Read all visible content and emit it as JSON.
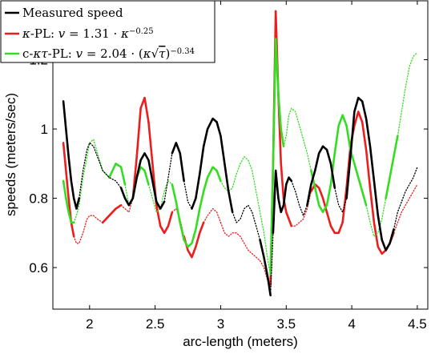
{
  "chart_data": {
    "type": "line",
    "xlabel": "arc-length (meters)",
    "ylabel": "speeds (meters/sec)",
    "xlim": [
      1.72,
      4.58
    ],
    "ylim": [
      0.48,
      1.37
    ],
    "xticks": [
      2,
      2.5,
      3,
      3.5,
      4,
      4.5
    ],
    "xtick_labels": [
      "2",
      "2.5",
      "3",
      "3.5",
      "4",
      "4.5"
    ],
    "yticks": [
      0.6,
      0.8,
      1.0,
      1.2
    ],
    "ytick_labels": [
      "0.6",
      "0.8",
      "1",
      "1.2"
    ],
    "grid": false,
    "legend_position": "top-left",
    "legend": [
      "Measured speed",
      "κ-PL: v = 1.31 · κ^(−0.25)",
      "c-κτ-PL: v = 2.04 · (κ√τ)^(−0.34)"
    ],
    "series": [
      {
        "name": "Measured speed",
        "color": "#000000",
        "x": [
          1.8,
          1.82,
          1.84,
          1.86,
          1.88,
          1.9,
          1.92,
          1.95,
          1.98,
          2.0,
          2.03,
          2.06,
          2.1,
          2.15,
          2.2,
          2.24,
          2.27,
          2.3,
          2.33,
          2.36,
          2.39,
          2.42,
          2.45,
          2.48,
          2.51,
          2.54,
          2.57,
          2.6,
          2.63,
          2.66,
          2.69,
          2.72,
          2.75,
          2.78,
          2.81,
          2.84,
          2.87,
          2.9,
          2.94,
          2.97,
          3.0,
          3.03,
          3.06,
          3.09,
          3.12,
          3.15,
          3.18,
          3.21,
          3.24,
          3.27,
          3.3,
          3.33,
          3.36,
          3.38,
          3.4,
          3.42,
          3.44,
          3.46,
          3.48,
          3.5,
          3.52,
          3.54,
          3.57,
          3.6,
          3.63,
          3.66,
          3.69,
          3.72,
          3.75,
          3.78,
          3.81,
          3.84,
          3.87,
          3.9,
          3.93,
          3.96,
          3.99,
          4.02,
          4.05,
          4.08,
          4.11,
          4.14,
          4.17,
          4.2,
          4.23,
          4.26,
          4.29,
          4.32,
          4.35,
          4.38,
          4.41,
          4.44,
          4.47,
          4.5
        ],
        "y": [
          1.08,
          1.0,
          0.92,
          0.85,
          0.8,
          0.77,
          0.8,
          0.88,
          0.94,
          0.96,
          0.95,
          0.92,
          0.88,
          0.86,
          0.85,
          0.83,
          0.8,
          0.78,
          0.8,
          0.86,
          0.91,
          0.93,
          0.91,
          0.85,
          0.79,
          0.77,
          0.79,
          0.86,
          0.93,
          0.96,
          0.93,
          0.85,
          0.79,
          0.77,
          0.8,
          0.87,
          0.95,
          1.0,
          1.03,
          1.02,
          0.98,
          0.9,
          0.82,
          0.76,
          0.73,
          0.74,
          0.77,
          0.78,
          0.76,
          0.72,
          0.68,
          0.63,
          0.57,
          0.52,
          0.7,
          0.88,
          0.8,
          0.76,
          0.78,
          0.84,
          0.86,
          0.85,
          0.82,
          0.78,
          0.75,
          0.78,
          0.84,
          0.88,
          0.93,
          0.95,
          0.94,
          0.9,
          0.83,
          0.78,
          0.76,
          0.8,
          0.92,
          1.05,
          1.09,
          1.08,
          1.03,
          0.95,
          0.85,
          0.75,
          0.68,
          0.65,
          0.67,
          0.71,
          0.76,
          0.79,
          0.82,
          0.84,
          0.86,
          0.89
        ],
        "segments": [
          {
            "from": 0,
            "to": 6,
            "style": "solid"
          },
          {
            "from": 6,
            "to": 15,
            "style": "dotted"
          },
          {
            "from": 15,
            "to": 26,
            "style": "solid"
          },
          {
            "from": 26,
            "to": 28,
            "style": "dotted"
          },
          {
            "from": 28,
            "to": 31,
            "style": "solid"
          },
          {
            "from": 31,
            "to": 33,
            "style": "dotted"
          },
          {
            "from": 33,
            "to": 39,
            "style": "solid"
          },
          {
            "from": 39,
            "to": 43,
            "style": "solid"
          },
          {
            "from": 43,
            "to": 44,
            "style": "dotted"
          },
          {
            "from": 44,
            "to": 50,
            "style": "dotted"
          },
          {
            "from": 50,
            "to": 53,
            "style": "solid"
          },
          {
            "from": 53,
            "to": 54,
            "style": "dotted"
          },
          {
            "from": 54,
            "to": 61,
            "style": "solid"
          },
          {
            "from": 61,
            "to": 65,
            "style": "dotted"
          },
          {
            "from": 65,
            "to": 72,
            "style": "solid"
          },
          {
            "from": 72,
            "to": 75,
            "style": "dotted"
          },
          {
            "from": 75,
            "to": 83,
            "style": "solid"
          },
          {
            "from": 83,
            "to": 87,
            "style": "solid"
          },
          {
            "from": 87,
            "to": 93,
            "style": "dotted"
          }
        ]
      },
      {
        "name": "κ-PL: v = 1.31 · κ^(−0.25)",
        "color": "#ee1c1c",
        "x": [
          1.8,
          1.82,
          1.84,
          1.86,
          1.88,
          1.9,
          1.92,
          1.95,
          1.98,
          2.0,
          2.03,
          2.06,
          2.1,
          2.15,
          2.2,
          2.24,
          2.27,
          2.3,
          2.33,
          2.36,
          2.39,
          2.42,
          2.45,
          2.48,
          2.51,
          2.54,
          2.57,
          2.6,
          2.63,
          2.66,
          2.69,
          2.72,
          2.75,
          2.78,
          2.81,
          2.84,
          2.87,
          2.9,
          2.94,
          2.97,
          3.0,
          3.03,
          3.06,
          3.09,
          3.12,
          3.15,
          3.18,
          3.21,
          3.24,
          3.27,
          3.3,
          3.33,
          3.36,
          3.38,
          3.4,
          3.42,
          3.44,
          3.46,
          3.48,
          3.5,
          3.52,
          3.54,
          3.57,
          3.6,
          3.63,
          3.66,
          3.69,
          3.72,
          3.75,
          3.78,
          3.81,
          3.84,
          3.87,
          3.9,
          3.93,
          3.96,
          3.99,
          4.02,
          4.05,
          4.08,
          4.11,
          4.14,
          4.17,
          4.2,
          4.23,
          4.26,
          4.29,
          4.32,
          4.35,
          4.38,
          4.41,
          4.44,
          4.47,
          4.5
        ],
        "y": [
          0.96,
          0.88,
          0.8,
          0.73,
          0.69,
          0.67,
          0.67,
          0.7,
          0.74,
          0.75,
          0.75,
          0.74,
          0.73,
          0.75,
          0.77,
          0.78,
          0.77,
          0.76,
          0.8,
          0.92,
          1.06,
          1.09,
          1.02,
          0.9,
          0.78,
          0.72,
          0.7,
          0.72,
          0.76,
          0.77,
          0.74,
          0.69,
          0.65,
          0.63,
          0.66,
          0.7,
          0.73,
          0.75,
          0.77,
          0.76,
          0.73,
          0.7,
          0.69,
          0.7,
          0.7,
          0.69,
          0.67,
          0.65,
          0.64,
          0.63,
          0.62,
          0.6,
          0.56,
          0.55,
          0.9,
          1.34,
          1.1,
          0.9,
          0.8,
          0.76,
          0.74,
          0.72,
          0.72,
          0.73,
          0.74,
          0.77,
          0.82,
          0.84,
          0.83,
          0.8,
          0.76,
          0.72,
          0.7,
          0.7,
          0.73,
          0.83,
          0.95,
          1.01,
          1.05,
          1.02,
          0.94,
          0.83,
          0.73,
          0.66,
          0.64,
          0.65,
          0.67,
          0.7,
          0.73,
          0.76,
          0.78,
          0.8,
          0.82,
          0.84
        ],
        "segments": [
          {
            "from": 0,
            "to": 4,
            "style": "solid"
          },
          {
            "from": 4,
            "to": 12,
            "style": "dotted"
          },
          {
            "from": 12,
            "to": 15,
            "style": "solid"
          },
          {
            "from": 15,
            "to": 18,
            "style": "dotted"
          },
          {
            "from": 18,
            "to": 22,
            "style": "solid"
          },
          {
            "from": 22,
            "to": 25,
            "style": "solid"
          },
          {
            "from": 25,
            "to": 28,
            "style": "solid"
          },
          {
            "from": 28,
            "to": 31,
            "style": "dotted"
          },
          {
            "from": 31,
            "to": 36,
            "style": "solid"
          },
          {
            "from": 36,
            "to": 40,
            "style": "dotted"
          },
          {
            "from": 40,
            "to": 53,
            "style": "dotted"
          },
          {
            "from": 53,
            "to": 61,
            "style": "solid"
          },
          {
            "from": 61,
            "to": 66,
            "style": "dotted"
          },
          {
            "from": 66,
            "to": 70,
            "style": "solid"
          },
          {
            "from": 70,
            "to": 75,
            "style": "solid"
          },
          {
            "from": 75,
            "to": 87,
            "style": "solid"
          },
          {
            "from": 87,
            "to": 93,
            "style": "dotted"
          }
        ]
      },
      {
        "name": "c-κτ-PL: v = 2.04 · (κ√τ)^(−0.34)",
        "color": "#33dd22",
        "x": [
          1.8,
          1.82,
          1.84,
          1.86,
          1.88,
          1.9,
          1.92,
          1.95,
          1.98,
          2.0,
          2.03,
          2.06,
          2.1,
          2.15,
          2.2,
          2.24,
          2.27,
          2.3,
          2.33,
          2.36,
          2.39,
          2.42,
          2.45,
          2.48,
          2.51,
          2.54,
          2.57,
          2.6,
          2.63,
          2.66,
          2.69,
          2.72,
          2.75,
          2.78,
          2.81,
          2.84,
          2.87,
          2.9,
          2.94,
          2.97,
          3.0,
          3.03,
          3.06,
          3.09,
          3.12,
          3.15,
          3.18,
          3.21,
          3.24,
          3.27,
          3.3,
          3.33,
          3.36,
          3.38,
          3.4,
          3.42,
          3.44,
          3.46,
          3.48,
          3.5,
          3.52,
          3.54,
          3.57,
          3.6,
          3.63,
          3.66,
          3.69,
          3.72,
          3.75,
          3.78,
          3.81,
          3.84,
          3.87,
          3.9,
          3.93,
          3.96,
          3.99,
          4.02,
          4.05,
          4.08,
          4.11,
          4.14,
          4.17,
          4.2,
          4.23,
          4.26,
          4.29,
          4.32,
          4.35,
          4.38,
          4.41,
          4.44,
          4.47,
          4.5
        ],
        "y": [
          0.85,
          0.8,
          0.76,
          0.73,
          0.73,
          0.75,
          0.78,
          0.86,
          0.92,
          0.96,
          0.97,
          0.93,
          0.88,
          0.86,
          0.9,
          0.89,
          0.84,
          0.78,
          0.8,
          0.86,
          0.89,
          0.88,
          0.84,
          0.8,
          0.76,
          0.77,
          0.82,
          0.85,
          0.84,
          0.79,
          0.73,
          0.68,
          0.66,
          0.67,
          0.71,
          0.77,
          0.82,
          0.86,
          0.89,
          0.88,
          0.85,
          0.83,
          0.82,
          0.83,
          0.87,
          0.9,
          0.92,
          0.91,
          0.88,
          0.82,
          0.76,
          0.7,
          0.62,
          0.58,
          0.9,
          1.26,
          1.1,
          1.0,
          0.95,
          0.98,
          1.04,
          1.06,
          1.05,
          1.01,
          0.97,
          0.93,
          0.88,
          0.83,
          0.78,
          0.76,
          0.78,
          0.84,
          0.93,
          1.01,
          1.04,
          1.01,
          0.94,
          0.9,
          0.86,
          0.82,
          0.78,
          0.73,
          0.69,
          0.7,
          0.74,
          0.8,
          0.86,
          0.92,
          0.98,
          1.05,
          1.12,
          1.18,
          1.21,
          1.22
        ],
        "segments": [
          {
            "from": 0,
            "to": 4,
            "style": "solid"
          },
          {
            "from": 4,
            "to": 9,
            "style": "dotted"
          },
          {
            "from": 9,
            "to": 13,
            "style": "dotted"
          },
          {
            "from": 13,
            "to": 16,
            "style": "solid"
          },
          {
            "from": 16,
            "to": 18,
            "style": "dotted"
          },
          {
            "from": 18,
            "to": 22,
            "style": "solid"
          },
          {
            "from": 22,
            "to": 28,
            "style": "dotted"
          },
          {
            "from": 28,
            "to": 31,
            "style": "solid"
          },
          {
            "from": 31,
            "to": 36,
            "style": "solid"
          },
          {
            "from": 36,
            "to": 40,
            "style": "solid"
          },
          {
            "from": 40,
            "to": 53,
            "style": "dotted"
          },
          {
            "from": 53,
            "to": 58,
            "style": "solid"
          },
          {
            "from": 58,
            "to": 66,
            "style": "dotted"
          },
          {
            "from": 66,
            "to": 70,
            "style": "solid"
          },
          {
            "from": 70,
            "to": 75,
            "style": "solid"
          },
          {
            "from": 75,
            "to": 80,
            "style": "solid"
          },
          {
            "from": 80,
            "to": 85,
            "style": "dotted"
          },
          {
            "from": 85,
            "to": 88,
            "style": "solid"
          },
          {
            "from": 88,
            "to": 93,
            "style": "dotted"
          }
        ]
      }
    ]
  }
}
